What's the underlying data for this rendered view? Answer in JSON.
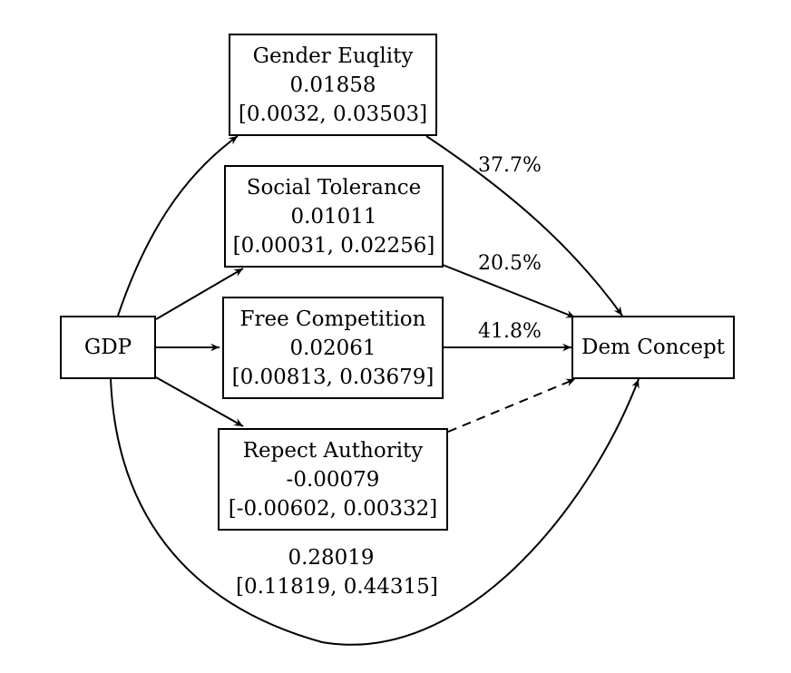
{
  "nodes": {
    "gdp": {
      "label": "GDP"
    },
    "dem": {
      "label": "Dem Concept"
    },
    "gender": {
      "label": "Gender Euqlity",
      "value": "0.01858",
      "ci": "[0.0032, 0.03503]"
    },
    "social": {
      "label": "Social Tolerance",
      "value": "0.01011",
      "ci": "[0.00031, 0.02256]"
    },
    "free": {
      "label": "Free Competition",
      "value": "0.02061",
      "ci": "[0.00813, 0.03679]"
    },
    "respect": {
      "label": "Repect Authority",
      "value": "-0.00079",
      "ci": "[-0.00602, 0.00332]"
    }
  },
  "edges": {
    "gender_dem_pct": "37.7%",
    "social_dem_pct": "20.5%",
    "free_dem_pct": "41.8%",
    "respect_dem_style": "dashed"
  },
  "direct_effect": {
    "value": "0.28019",
    "ci": "[0.11819, 0.44315]"
  }
}
